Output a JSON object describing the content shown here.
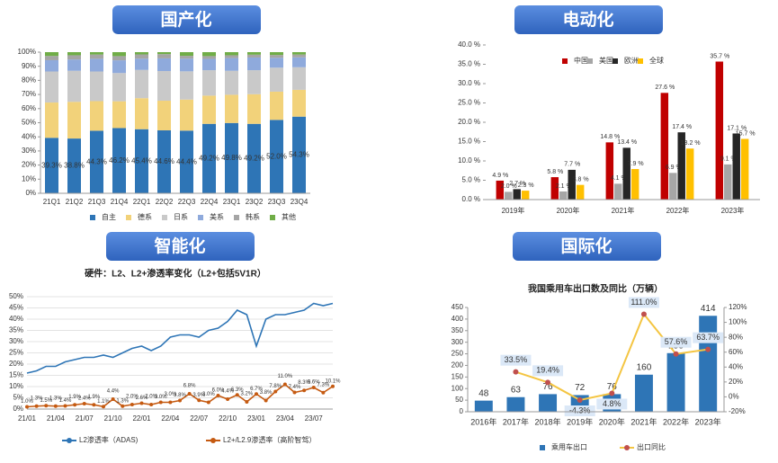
{
  "chart_data": [
    {
      "type": "stacked_bar",
      "heading": "国产化",
      "categories": [
        "21Q1",
        "21Q2",
        "21Q3",
        "21Q4",
        "22Q1",
        "22Q2",
        "22Q3",
        "22Q4",
        "23Q1",
        "23Q2",
        "23Q3",
        "23Q4"
      ],
      "series": [
        {
          "name": "自主",
          "color": "#2e75b6",
          "values": [
            39.3,
            38.8,
            44.3,
            46.2,
            45.4,
            44.6,
            44.4,
            49.2,
            49.8,
            49.2,
            52.0,
            54.3
          ],
          "value_labels": [
            "39.3%",
            "38.8%",
            "44.3%",
            "46.2%",
            "45.4%",
            "44.6%",
            "44.4%",
            "49.2%",
            "49.8%",
            "49.2%",
            "52.0%",
            "54.3%"
          ]
        },
        {
          "name": "德系",
          "color": "#f2d27a",
          "values": [
            25,
            26,
            21,
            19,
            22,
            21,
            22,
            20,
            20,
            21,
            20,
            19
          ]
        },
        {
          "name": "日系",
          "color": "#c9c9c9",
          "values": [
            22,
            22,
            21,
            20,
            20,
            21,
            20,
            18,
            17,
            17,
            17,
            16
          ]
        },
        {
          "name": "美系",
          "color": "#8faadc",
          "values": [
            8,
            8,
            9,
            9,
            8,
            9,
            9,
            8,
            9,
            9,
            7,
            7
          ]
        },
        {
          "name": "韩系",
          "color": "#a5a5a5",
          "values": [
            3,
            3,
            3,
            3,
            3,
            3,
            2,
            2,
            2,
            2,
            2,
            2
          ]
        },
        {
          "name": "其他",
          "color": "#70ad47",
          "values": [
            2.7,
            2.2,
            1.7,
            2.8,
            1.6,
            1.4,
            2.6,
            2.8,
            2.2,
            1.8,
            2.0,
            1.7
          ]
        }
      ],
      "ylim": [
        0,
        100
      ],
      "yticks": [
        {
          "value": 0,
          "label": "0%"
        },
        {
          "value": 10,
          "label": "10%"
        },
        {
          "value": 20,
          "label": "20%"
        },
        {
          "value": 30,
          "label": "30%"
        },
        {
          "value": 40,
          "label": "40%"
        },
        {
          "value": 50,
          "label": "50%"
        },
        {
          "value": 60,
          "label": "60%"
        },
        {
          "value": 70,
          "label": "70%"
        },
        {
          "value": 80,
          "label": "80%"
        },
        {
          "value": 90,
          "label": "90%"
        },
        {
          "value": 100,
          "label": "100%"
        }
      ],
      "legend": "bottom",
      "grid": false
    },
    {
      "type": "bar",
      "heading": "电动化",
      "categories": [
        "2019年",
        "2020年",
        "2021年",
        "2022年",
        "2023年"
      ],
      "series": [
        {
          "name": "中国",
          "color": "#c00000",
          "values": [
            4.9,
            5.8,
            14.8,
            27.6,
            35.7
          ],
          "value_labels": [
            "4.9 %",
            "5.8 %",
            "14.8 %",
            "27.6 %",
            "35.7 %"
          ]
        },
        {
          "name": "美国",
          "color": "#a6a6a6",
          "values": [
            2.0,
            2.1,
            4.1,
            6.9,
            9.1
          ],
          "value_labels": [
            "2.0 %",
            "2.1 %",
            "4.1 %",
            "6.9 %",
            "9.1 %"
          ]
        },
        {
          "name": "欧洲",
          "color": "#262626",
          "values": [
            2.7,
            7.7,
            13.4,
            17.4,
            17.1
          ],
          "value_labels": [
            "2.7 %",
            "7.7 %",
            "13.4 %",
            "17.4 %",
            "17.1 %"
          ]
        },
        {
          "name": "全球",
          "color": "#ffc000",
          "values": [
            2.3,
            3.8,
            7.9,
            13.2,
            15.7
          ],
          "value_labels": [
            "2.3 %",
            "3.8 %",
            "7.9 %",
            "13.2 %",
            "15.7 %"
          ]
        }
      ],
      "ylim": [
        0,
        40
      ],
      "yticks": [
        {
          "value": 0,
          "label": "0.0 %"
        },
        {
          "value": 5,
          "label": "5.0 %"
        },
        {
          "value": 10,
          "label": "10.0 %"
        },
        {
          "value": 15,
          "label": "15.0 %"
        },
        {
          "value": 20,
          "label": "20.0 %"
        },
        {
          "value": 25,
          "label": "25.0 %"
        },
        {
          "value": 30,
          "label": "30.0 %"
        },
        {
          "value": 35,
          "label": "35.0 %"
        },
        {
          "value": 40,
          "label": "40.0 %"
        }
      ],
      "legend": "top",
      "grid": false
    },
    {
      "type": "line",
      "heading": "智能化",
      "title": "硬件：L2、L2+渗透率变化（L2+包括5V1R）",
      "categories": [
        "21/01",
        null,
        null,
        "21/04",
        null,
        null,
        "21/07",
        null,
        null,
        "21/10",
        null,
        null,
        "22/01",
        null,
        null,
        "22/04",
        null,
        null,
        "22/07",
        null,
        null,
        "22/10",
        null,
        null,
        "23/01",
        null,
        null,
        "23/04",
        null,
        null,
        "23/07",
        null,
        null
      ],
      "series": [
        {
          "name": "L2渗透率（ADAS)",
          "color": "#2e75b6",
          "values": [
            16,
            17,
            19,
            19,
            21,
            22,
            23,
            23,
            24,
            23,
            25,
            27,
            28,
            26,
            28,
            32,
            33,
            33,
            32,
            35,
            36,
            39,
            44,
            42,
            28,
            40,
            42,
            42,
            43,
            44,
            47,
            46,
            47
          ]
        },
        {
          "name": "L2+/L2.9渗透率（高阶智驾）",
          "color": "#c55a11",
          "marker": "circle",
          "values": [
            1.0,
            1.3,
            1.5,
            1.3,
            1.4,
            1.9,
            2.4,
            1.9,
            1.1,
            4.4,
            1.3,
            2.0,
            2.6,
            2.0,
            3.0,
            3.0,
            3.8,
            6.8,
            3.9,
            3.0,
            6.0,
            4.4,
            6.3,
            3.2,
            6.7,
            3.8,
            7.8,
            11.0,
            7.4,
            8.3,
            9.6,
            7.3,
            10.1
          ],
          "value_labels": [
            "1.0%",
            "1.3%",
            "1.5%",
            "1.3%",
            "1.4%",
            "1.9%",
            "2.4%",
            "1.9%",
            "1.1%",
            "4.4%",
            "1.3%",
            "2.0%",
            "2.6%",
            "2.0%",
            "3.0%",
            "3.0%",
            "3.8%",
            "6.8%",
            "3.9%",
            "3.0%",
            "6.0%",
            "4.4%",
            "6.3%",
            "3.2%",
            "6.7%",
            "3.8%",
            "7.8%",
            "11.0%",
            "7.4%",
            "8.3%",
            "9.6%",
            "7.3%",
            "10.1%"
          ]
        }
      ],
      "ylim": [
        0,
        50
      ],
      "yticks": [
        {
          "value": 0,
          "label": "0%"
        },
        {
          "value": 5,
          "label": "5%"
        },
        {
          "value": 10,
          "label": "10%"
        },
        {
          "value": 15,
          "label": "15%"
        },
        {
          "value": 20,
          "label": "20%"
        },
        {
          "value": 25,
          "label": "25%"
        },
        {
          "value": 30,
          "label": "30%"
        },
        {
          "value": 35,
          "label": "35%"
        },
        {
          "value": 40,
          "label": "40%"
        },
        {
          "value": 45,
          "label": "45%"
        },
        {
          "value": 50,
          "label": "50%"
        }
      ],
      "legend": "bottom",
      "grid": true
    },
    {
      "type": "bar_line",
      "heading": "国际化",
      "title": "我国乘用车出口数及同比（万辆）",
      "categories": [
        "2016年",
        "2017年",
        "2018年",
        "2019年",
        "2020年",
        "2021年",
        "2022年",
        "2023年"
      ],
      "series": [
        {
          "name": "乘用车出口",
          "color": "#2e75b6",
          "values": [
            48,
            63,
            76,
            72,
            76,
            160,
            253,
            414
          ]
        },
        {
          "name": "出口同比",
          "color": "#c0504d",
          "line_color": "#f4c542",
          "axis": "y2",
          "values": [
            null,
            33.5,
            19.4,
            -4.3,
            4.8,
            111.0,
            57.6,
            63.7
          ],
          "value_labels": [
            null,
            "33.5%",
            "19.4%",
            "-4.3%",
            "4.8%",
            "111.0%",
            "57.6%",
            "63.7%"
          ]
        }
      ],
      "ylim": [
        0,
        450
      ],
      "yticks": [
        0,
        50,
        100,
        150,
        200,
        250,
        300,
        350,
        400,
        450
      ],
      "y2lim": [
        -20,
        120
      ],
      "y2ticks": [
        {
          "value": -20,
          "label": "-20%"
        },
        {
          "value": 0,
          "label": "0%"
        },
        {
          "value": 20,
          "label": "20%"
        },
        {
          "value": 40,
          "label": "40%"
        },
        {
          "value": 60,
          "label": "60%"
        },
        {
          "value": 80,
          "label": "80%"
        },
        {
          "value": 100,
          "label": "100%"
        },
        {
          "value": 120,
          "label": "120%"
        }
      ],
      "legend": "bottom",
      "grid": false
    }
  ]
}
